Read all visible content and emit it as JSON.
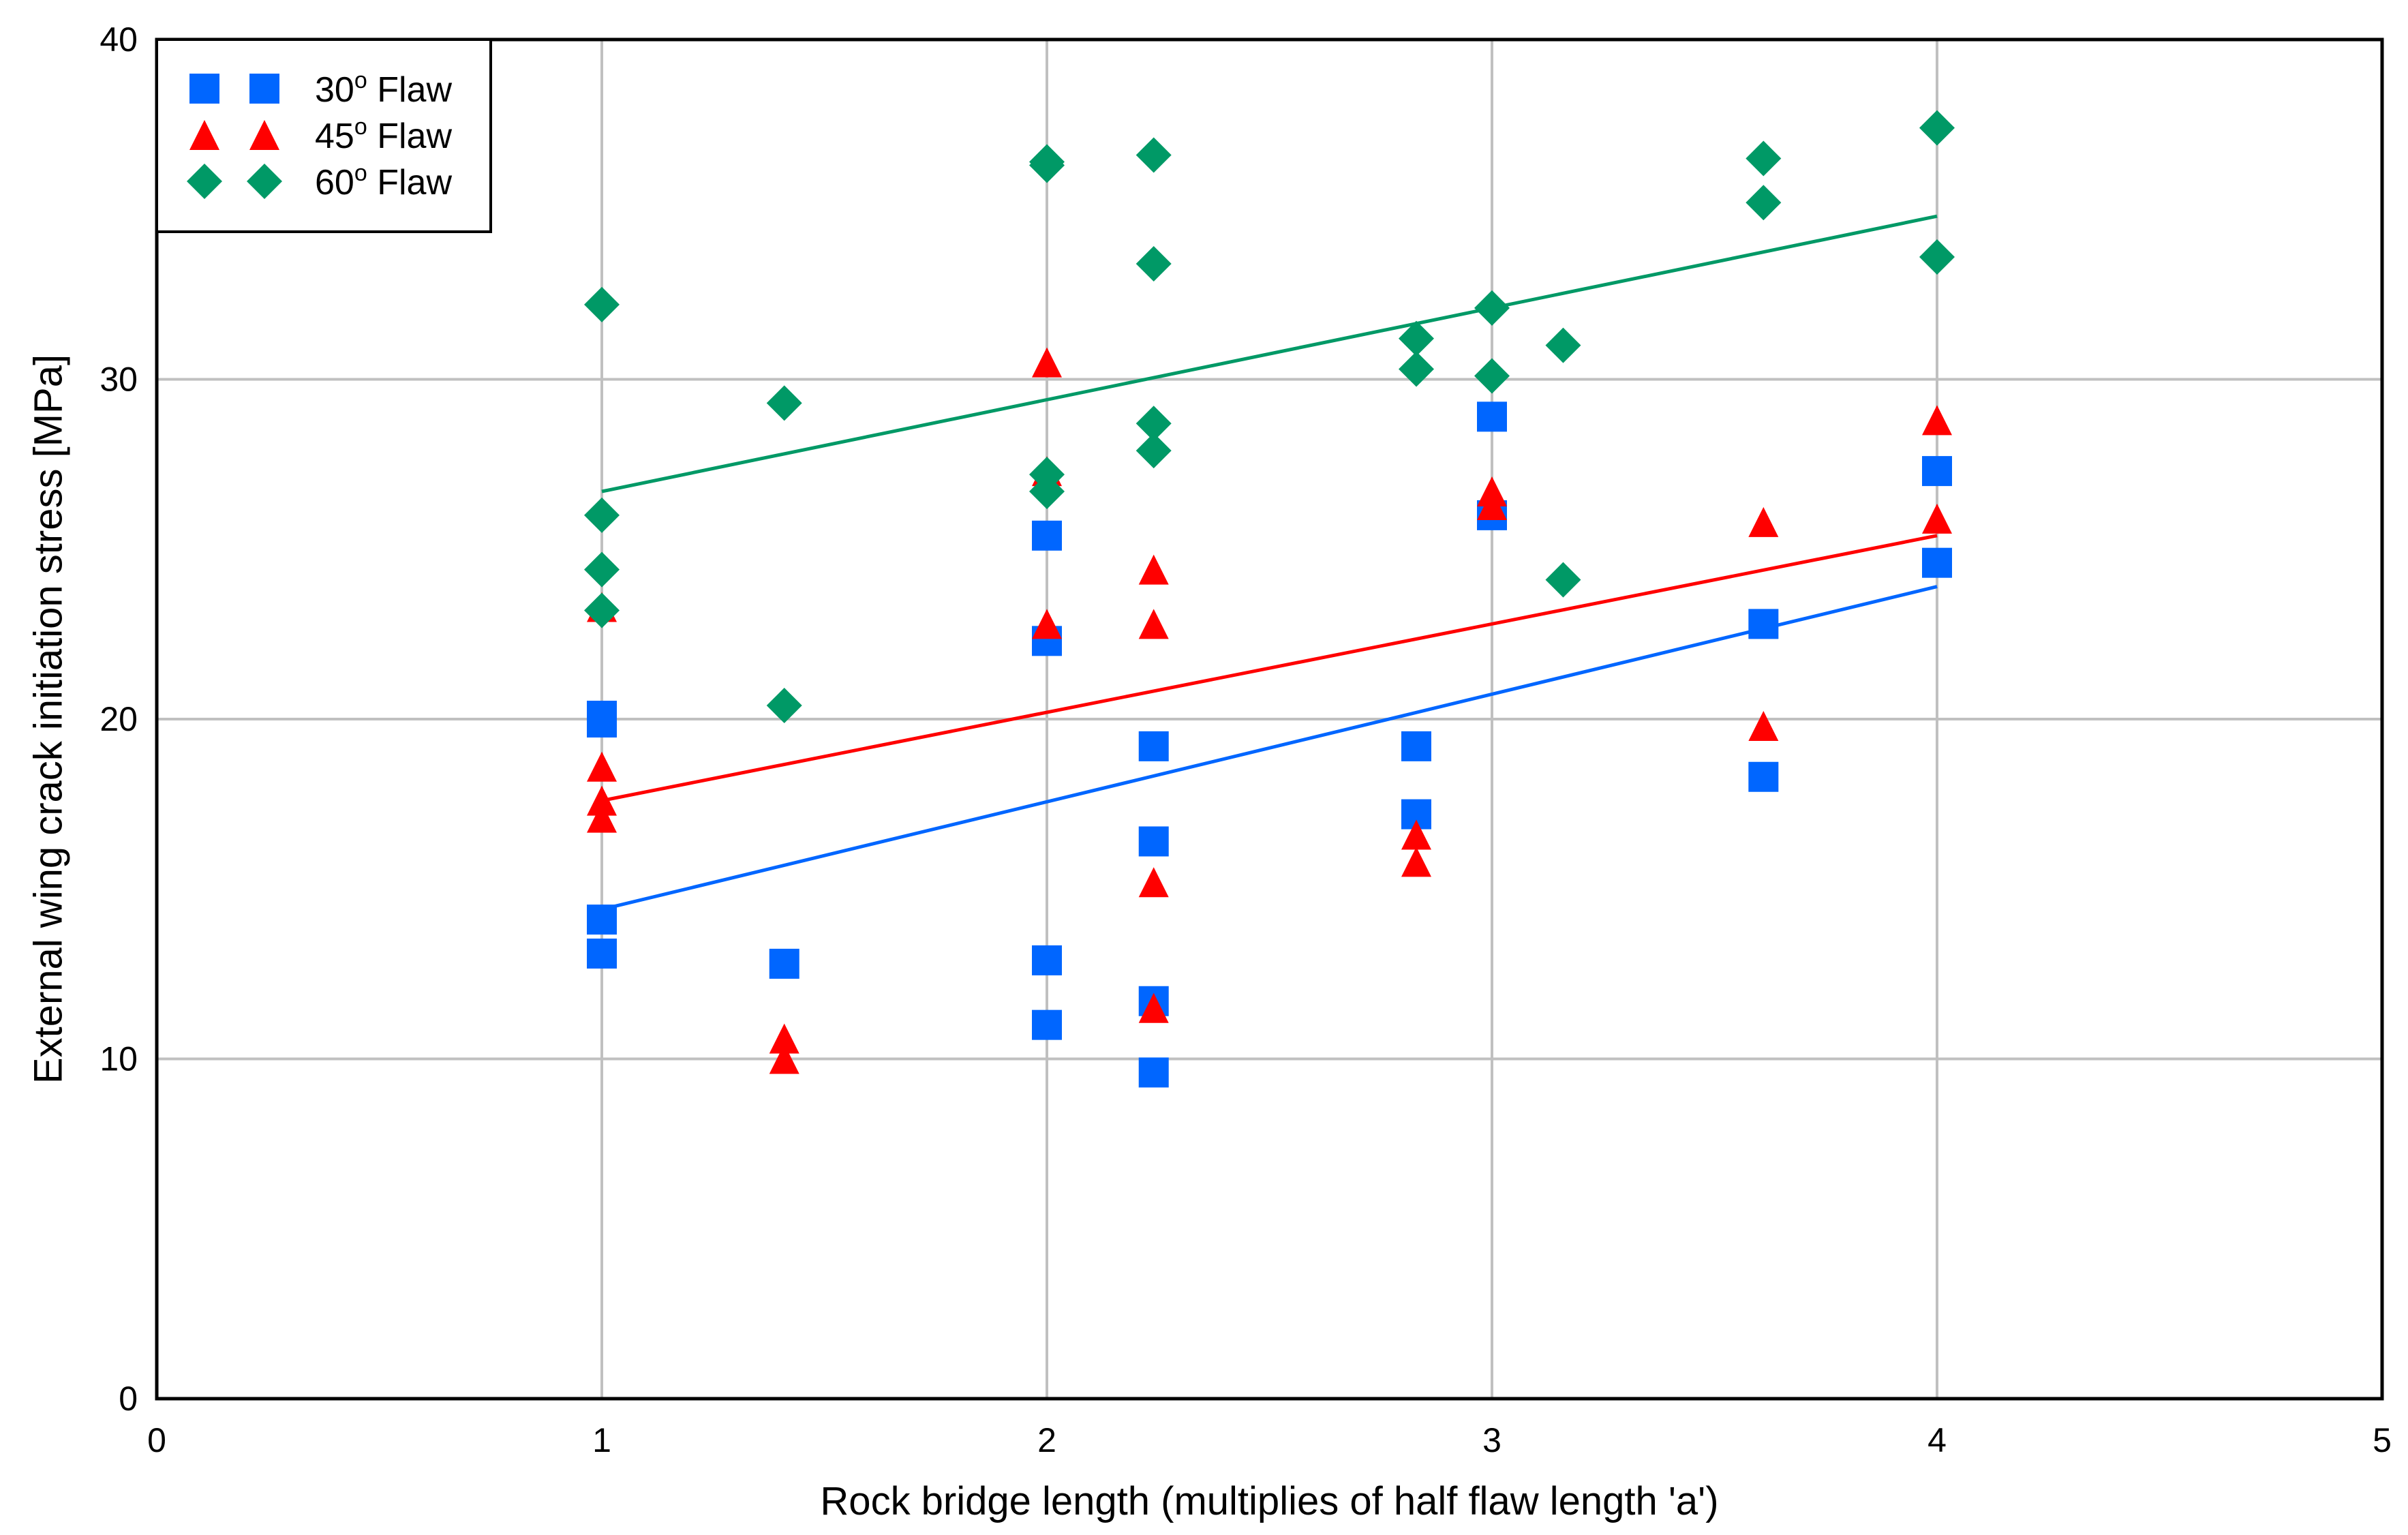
{
  "chart_data": {
    "type": "scatter",
    "title": "",
    "xlabel": "Rock bridge length (multiplies of half flaw length 'a')",
    "ylabel": "External wing crack initiation stress [MPa]",
    "xlim": [
      0,
      5
    ],
    "ylim": [
      0,
      40
    ],
    "xticks": [
      "0",
      "1",
      "2",
      "3",
      "4",
      "5"
    ],
    "yticks": [
      "0",
      "10",
      "20",
      "30",
      "40"
    ],
    "grid": true,
    "legend_position": "top-left",
    "series": [
      {
        "name": "30° Flaw",
        "label_prefix": "30",
        "label_sup": "o",
        "label_suffix": " Flaw",
        "marker": "square",
        "color": "#0066ff",
        "points": [
          [
            1,
            20.1
          ],
          [
            1,
            19.9
          ],
          [
            1,
            14.1
          ],
          [
            1,
            13.1
          ],
          [
            1.41,
            12.8
          ],
          [
            2,
            25.4
          ],
          [
            2,
            22.3
          ],
          [
            2,
            12.9
          ],
          [
            2,
            11.0
          ],
          [
            2.24,
            19.2
          ],
          [
            2.24,
            16.4
          ],
          [
            2.24,
            11.7
          ],
          [
            2.24,
            9.6
          ],
          [
            2.83,
            19.2
          ],
          [
            2.83,
            17.2
          ],
          [
            3,
            28.9
          ],
          [
            3,
            26.0
          ],
          [
            3.61,
            22.8
          ],
          [
            3.61,
            18.3
          ],
          [
            4,
            27.3
          ],
          [
            4,
            24.6
          ]
        ],
        "trendline": [
          [
            1,
            14.4
          ],
          [
            4,
            23.9
          ]
        ]
      },
      {
        "name": "45° Flaw",
        "label_prefix": "45",
        "label_sup": "o",
        "label_suffix": " Flaw",
        "marker": "triangle",
        "color": "#ff0000",
        "points": [
          [
            1,
            23.3
          ],
          [
            1,
            18.6
          ],
          [
            1,
            17.6
          ],
          [
            1,
            17.1
          ],
          [
            1.41,
            10.6
          ],
          [
            1.41,
            10.0
          ],
          [
            2,
            30.5
          ],
          [
            2,
            27.3
          ],
          [
            2,
            22.8
          ],
          [
            2.24,
            24.4
          ],
          [
            2.24,
            22.8
          ],
          [
            2.24,
            15.2
          ],
          [
            2.24,
            11.5
          ],
          [
            2.83,
            16.6
          ],
          [
            2.83,
            15.8
          ],
          [
            3,
            26.7
          ],
          [
            3,
            26.3
          ],
          [
            3.61,
            25.8
          ],
          [
            3.61,
            19.8
          ],
          [
            4,
            28.8
          ],
          [
            4,
            25.9
          ]
        ],
        "trendline": [
          [
            1,
            17.6
          ],
          [
            4,
            25.4
          ]
        ]
      },
      {
        "name": "60° Flaw",
        "label_prefix": "60",
        "label_sup": "o",
        "label_suffix": " Flaw",
        "marker": "diamond",
        "color": "#009966",
        "points": [
          [
            1,
            32.2
          ],
          [
            1,
            26.0
          ],
          [
            1,
            24.4
          ],
          [
            1,
            23.2
          ],
          [
            1.41,
            29.3
          ],
          [
            1.41,
            20.4
          ],
          [
            2,
            36.4
          ],
          [
            2,
            36.3
          ],
          [
            2,
            27.2
          ],
          [
            2,
            26.7
          ],
          [
            2.24,
            36.6
          ],
          [
            2.24,
            33.4
          ],
          [
            2.24,
            28.7
          ],
          [
            2.24,
            27.9
          ],
          [
            2.83,
            31.2
          ],
          [
            2.83,
            30.3
          ],
          [
            3,
            32.1
          ],
          [
            3,
            30.1
          ],
          [
            3.16,
            31.0
          ],
          [
            3.16,
            24.1
          ],
          [
            3.61,
            36.5
          ],
          [
            3.61,
            35.2
          ],
          [
            4,
            37.4
          ],
          [
            4,
            33.6
          ]
        ],
        "trendline": [
          [
            1,
            26.7
          ],
          [
            4,
            34.8
          ]
        ]
      }
    ]
  }
}
